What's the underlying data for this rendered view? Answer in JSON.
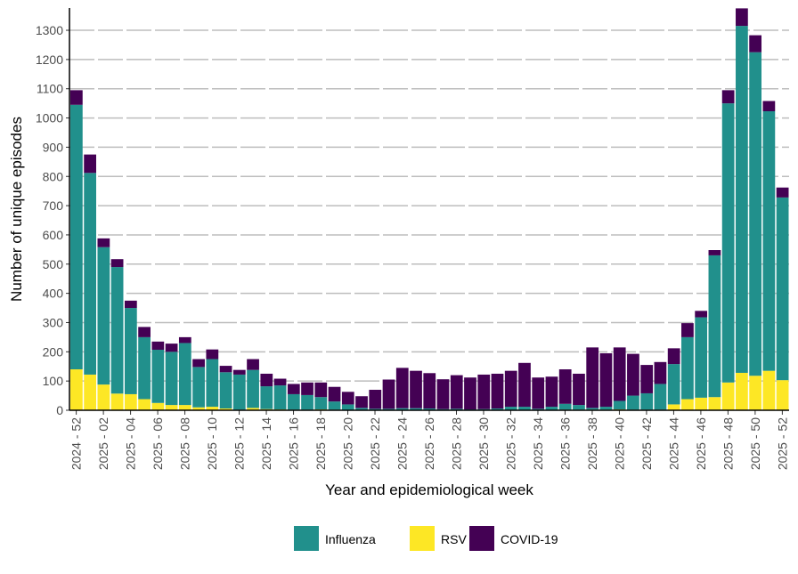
{
  "chart_data": {
    "type": "bar",
    "stacked": true,
    "xlabel": "Year and epidemiological week",
    "ylabel": "Number of unique episodes",
    "ylim": [
      0,
      1375
    ],
    "yticks": [
      0,
      100,
      200,
      300,
      400,
      500,
      600,
      700,
      800,
      900,
      1000,
      1100,
      1200,
      1300
    ],
    "grid": "horizontal dashed",
    "legend_position": "bottom",
    "categories": [
      "2024 - 52",
      "2025 - 01",
      "2025 - 02",
      "2025 - 03",
      "2025 - 04",
      "2025 - 05",
      "2025 - 06",
      "2025 - 07",
      "2025 - 08",
      "2025 - 09",
      "2025 - 10",
      "2025 - 11",
      "2025 - 12",
      "2025 - 13",
      "2025 - 14",
      "2025 - 15",
      "2025 - 16",
      "2025 - 17",
      "2025 - 18",
      "2025 - 19",
      "2025 - 20",
      "2025 - 21",
      "2025 - 22",
      "2025 - 23",
      "2025 - 24",
      "2025 - 25",
      "2025 - 26",
      "2025 - 27",
      "2025 - 28",
      "2025 - 29",
      "2025 - 30",
      "2025 - 31",
      "2025 - 32",
      "2025 - 33",
      "2025 - 34",
      "2025 - 35",
      "2025 - 36",
      "2025 - 37",
      "2025 - 38",
      "2025 - 39",
      "2025 - 40",
      "2025 - 41",
      "2025 - 42",
      "2025 - 43",
      "2025 - 44",
      "2025 - 45",
      "2025 - 46",
      "2025 - 47",
      "2025 - 48",
      "2025 - 49",
      "2025 - 50",
      "2025 - 51",
      "2025 - 52"
    ],
    "tick_labels_shown": [
      "2024 - 52",
      "2025 - 02",
      "2025 - 04",
      "2025 - 06",
      "2025 - 08",
      "2025 - 10",
      "2025 - 12",
      "2025 - 14",
      "2025 - 16",
      "2025 - 18",
      "2025 - 20",
      "2025 - 22",
      "2025 - 24",
      "2025 - 26",
      "2025 - 28",
      "2025 - 30",
      "2025 - 32",
      "2025 - 34",
      "2025 - 36",
      "2025 - 38",
      "2025 - 40",
      "2025 - 42",
      "2025 - 44",
      "2025 - 46",
      "2025 - 48",
      "2025 - 50",
      "2025 - 52"
    ],
    "series": [
      {
        "name": "RSV",
        "color": "#FDE725",
        "values": [
          140,
          122,
          88,
          57,
          55,
          38,
          25,
          18,
          18,
          10,
          12,
          6,
          2,
          8,
          4,
          3,
          2,
          2,
          3,
          2,
          1,
          1,
          1,
          1,
          1,
          1,
          1,
          1,
          1,
          1,
          1,
          1,
          1,
          1,
          1,
          1,
          2,
          2,
          2,
          2,
          3,
          2,
          2,
          2,
          20,
          38,
          43,
          45,
          95,
          128,
          118,
          135,
          103
        ]
      },
      {
        "name": "Influenza",
        "color": "#21908C",
        "values": [
          905,
          690,
          470,
          433,
          295,
          212,
          182,
          182,
          212,
          138,
          163,
          124,
          120,
          130,
          78,
          82,
          53,
          50,
          42,
          28,
          19,
          7,
          4,
          4,
          6,
          6,
          5,
          3,
          4,
          2,
          3,
          5,
          11,
          11,
          4,
          11,
          20,
          16,
          6,
          10,
          29,
          48,
          56,
          88,
          138,
          212,
          275,
          485,
          955,
          1187,
          1107,
          888,
          625
        ]
      },
      {
        "name": "COVID-19",
        "color": "#440154",
        "values": [
          50,
          63,
          30,
          27,
          25,
          35,
          28,
          28,
          20,
          27,
          33,
          22,
          16,
          37,
          43,
          23,
          35,
          43,
          50,
          50,
          43,
          40,
          65,
          100,
          138,
          128,
          121,
          102,
          115,
          109,
          118,
          119,
          123,
          150,
          107,
          103,
          118,
          107,
          207,
          183,
          183,
          143,
          97,
          75,
          54,
          48,
          22,
          18,
          45,
          60,
          58,
          35,
          34
        ]
      }
    ]
  }
}
